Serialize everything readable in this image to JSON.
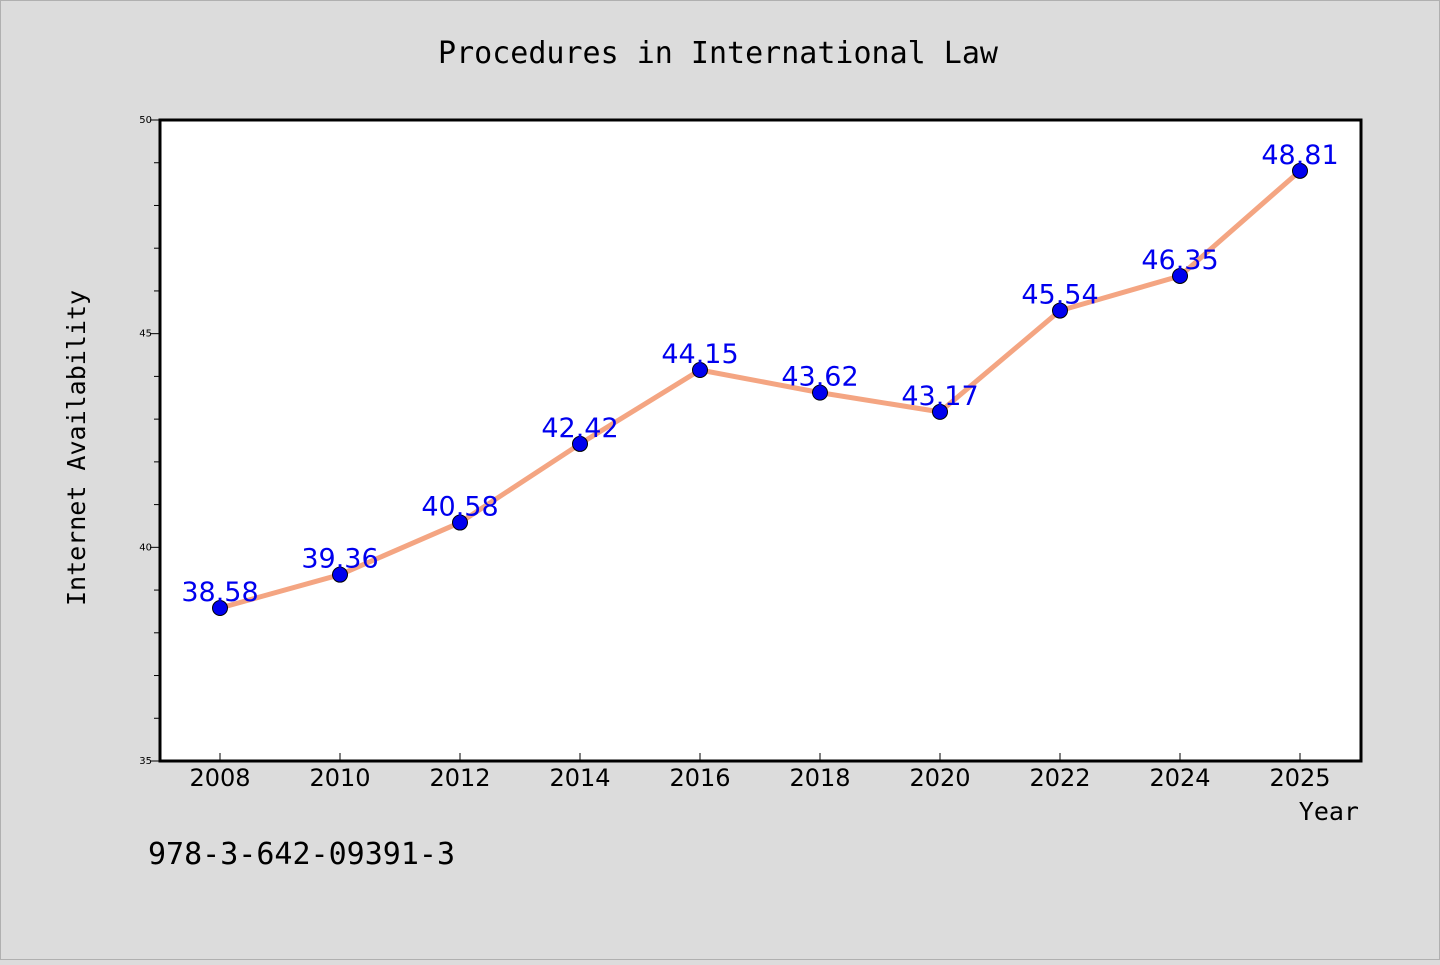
{
  "chart_data": {
    "type": "line",
    "title": "Procedures in International Law",
    "xlabel": "Year",
    "ylabel": "Internet Availability",
    "categories": [
      "2008",
      "2010",
      "2012",
      "2014",
      "2016",
      "2018",
      "2020",
      "2022",
      "2024",
      "2025"
    ],
    "series": [
      {
        "values": [
          38.58,
          39.36,
          40.58,
          42.42,
          44.15,
          43.62,
          43.17,
          45.54,
          46.35,
          48.81
        ],
        "line_color": "#f4a582",
        "marker_color": "#0000ee",
        "label_color": "#0000ee"
      }
    ],
    "data_labels": [
      "38.58",
      "39.36",
      "40.58",
      "42.42",
      "44.15",
      "43.62",
      "43.17",
      "45.54",
      "46.35",
      "48.81"
    ],
    "ylim": [
      35,
      50
    ],
    "yticks": [
      "35",
      "40",
      "45",
      "50"
    ],
    "grid": false,
    "legend": "none"
  },
  "footnote": "978-3-642-09391-3",
  "colors": {
    "background": "#dcdcdc",
    "plot_background": "#ffffff",
    "axis": "#000000"
  }
}
